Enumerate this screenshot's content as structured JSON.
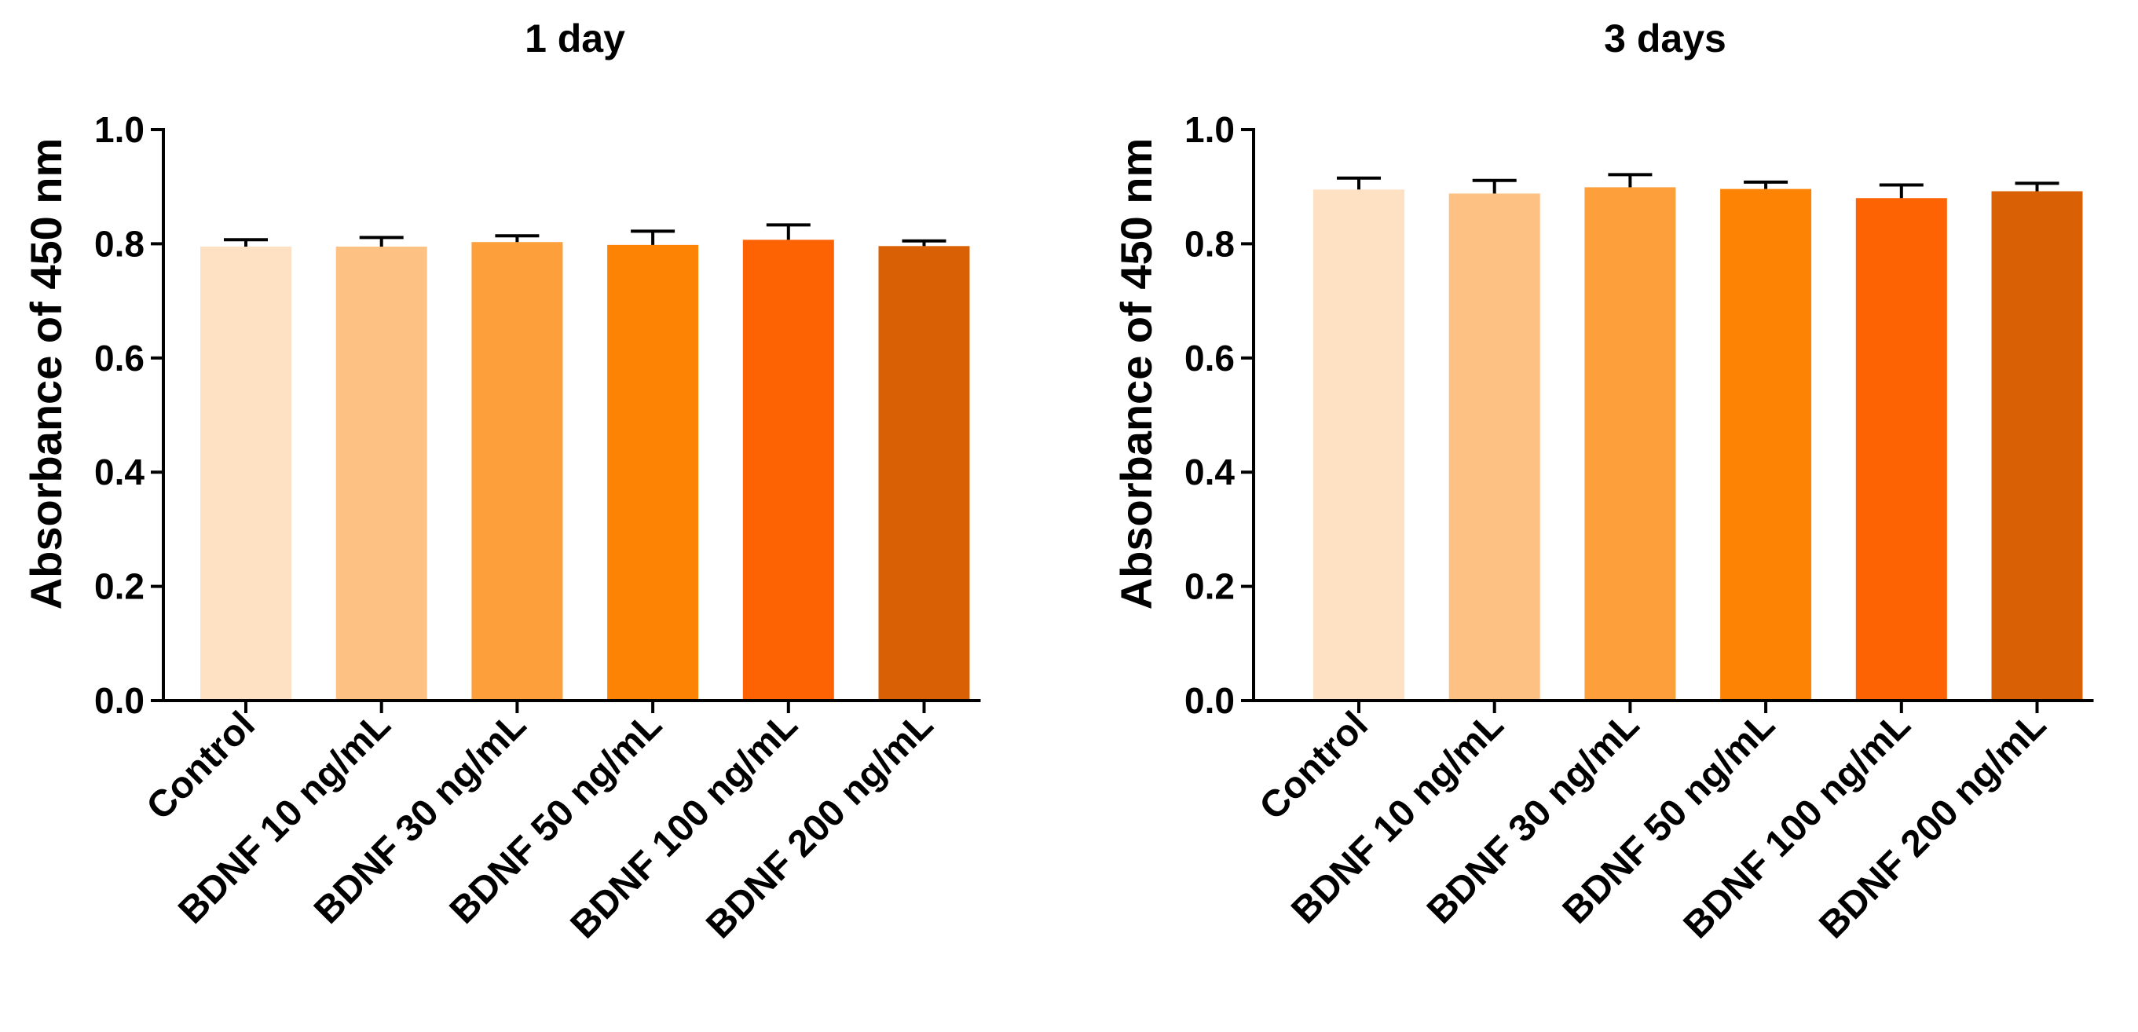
{
  "charts": [
    {
      "title": "1 day",
      "ylabel": "Absorbance of 450 nm",
      "ytick_labels": [
        "0.0",
        "0.2",
        "0.4",
        "0.6",
        "0.8",
        "1.0"
      ]
    },
    {
      "title": "3 days",
      "ylabel": "Absorbance of 450 nm",
      "ytick_labels": [
        "0.0",
        "0.2",
        "0.4",
        "0.6",
        "0.8",
        "1.0"
      ]
    }
  ],
  "chart_data": [
    {
      "type": "bar",
      "title": "1 day",
      "xlabel": "",
      "ylabel": "Absorbance of 450 nm",
      "categories": [
        "Control",
        "BDNF 10 ng/mL",
        "BDNF 30 ng/mL",
        "BDNF 50 ng/mL",
        "BDNF 100 ng/mL",
        "BDNF 200 ng/mL"
      ],
      "values": [
        0.795,
        0.795,
        0.803,
        0.798,
        0.807,
        0.796
      ],
      "errors": [
        0.012,
        0.016,
        0.011,
        0.024,
        0.026,
        0.009
      ],
      "ylim": [
        0,
        1.0
      ],
      "yticks": [
        0.0,
        0.2,
        0.4,
        0.6,
        0.8,
        1.0
      ],
      "colors": [
        "#FEE0C2",
        "#FDC183",
        "#FDA03C",
        "#FD8305",
        "#FE6303",
        "#DA6006"
      ]
    },
    {
      "type": "bar",
      "title": "3 days",
      "xlabel": "",
      "ylabel": "Absorbance of 450 nm",
      "categories": [
        "Control",
        "BDNF 10 ng/mL",
        "BDNF 30 ng/mL",
        "BDNF 50 ng/mL",
        "BDNF 100 ng/mL",
        "BDNF 200 ng/mL"
      ],
      "values": [
        0.895,
        0.888,
        0.899,
        0.896,
        0.88,
        0.892
      ],
      "errors": [
        0.02,
        0.023,
        0.022,
        0.012,
        0.023,
        0.014
      ],
      "ylim": [
        0,
        1.0
      ],
      "yticks": [
        0.0,
        0.2,
        0.4,
        0.6,
        0.8,
        1.0
      ],
      "colors": [
        "#FEE0C2",
        "#FDC183",
        "#FDA03C",
        "#FD8305",
        "#FE6303",
        "#DA6006"
      ]
    }
  ]
}
